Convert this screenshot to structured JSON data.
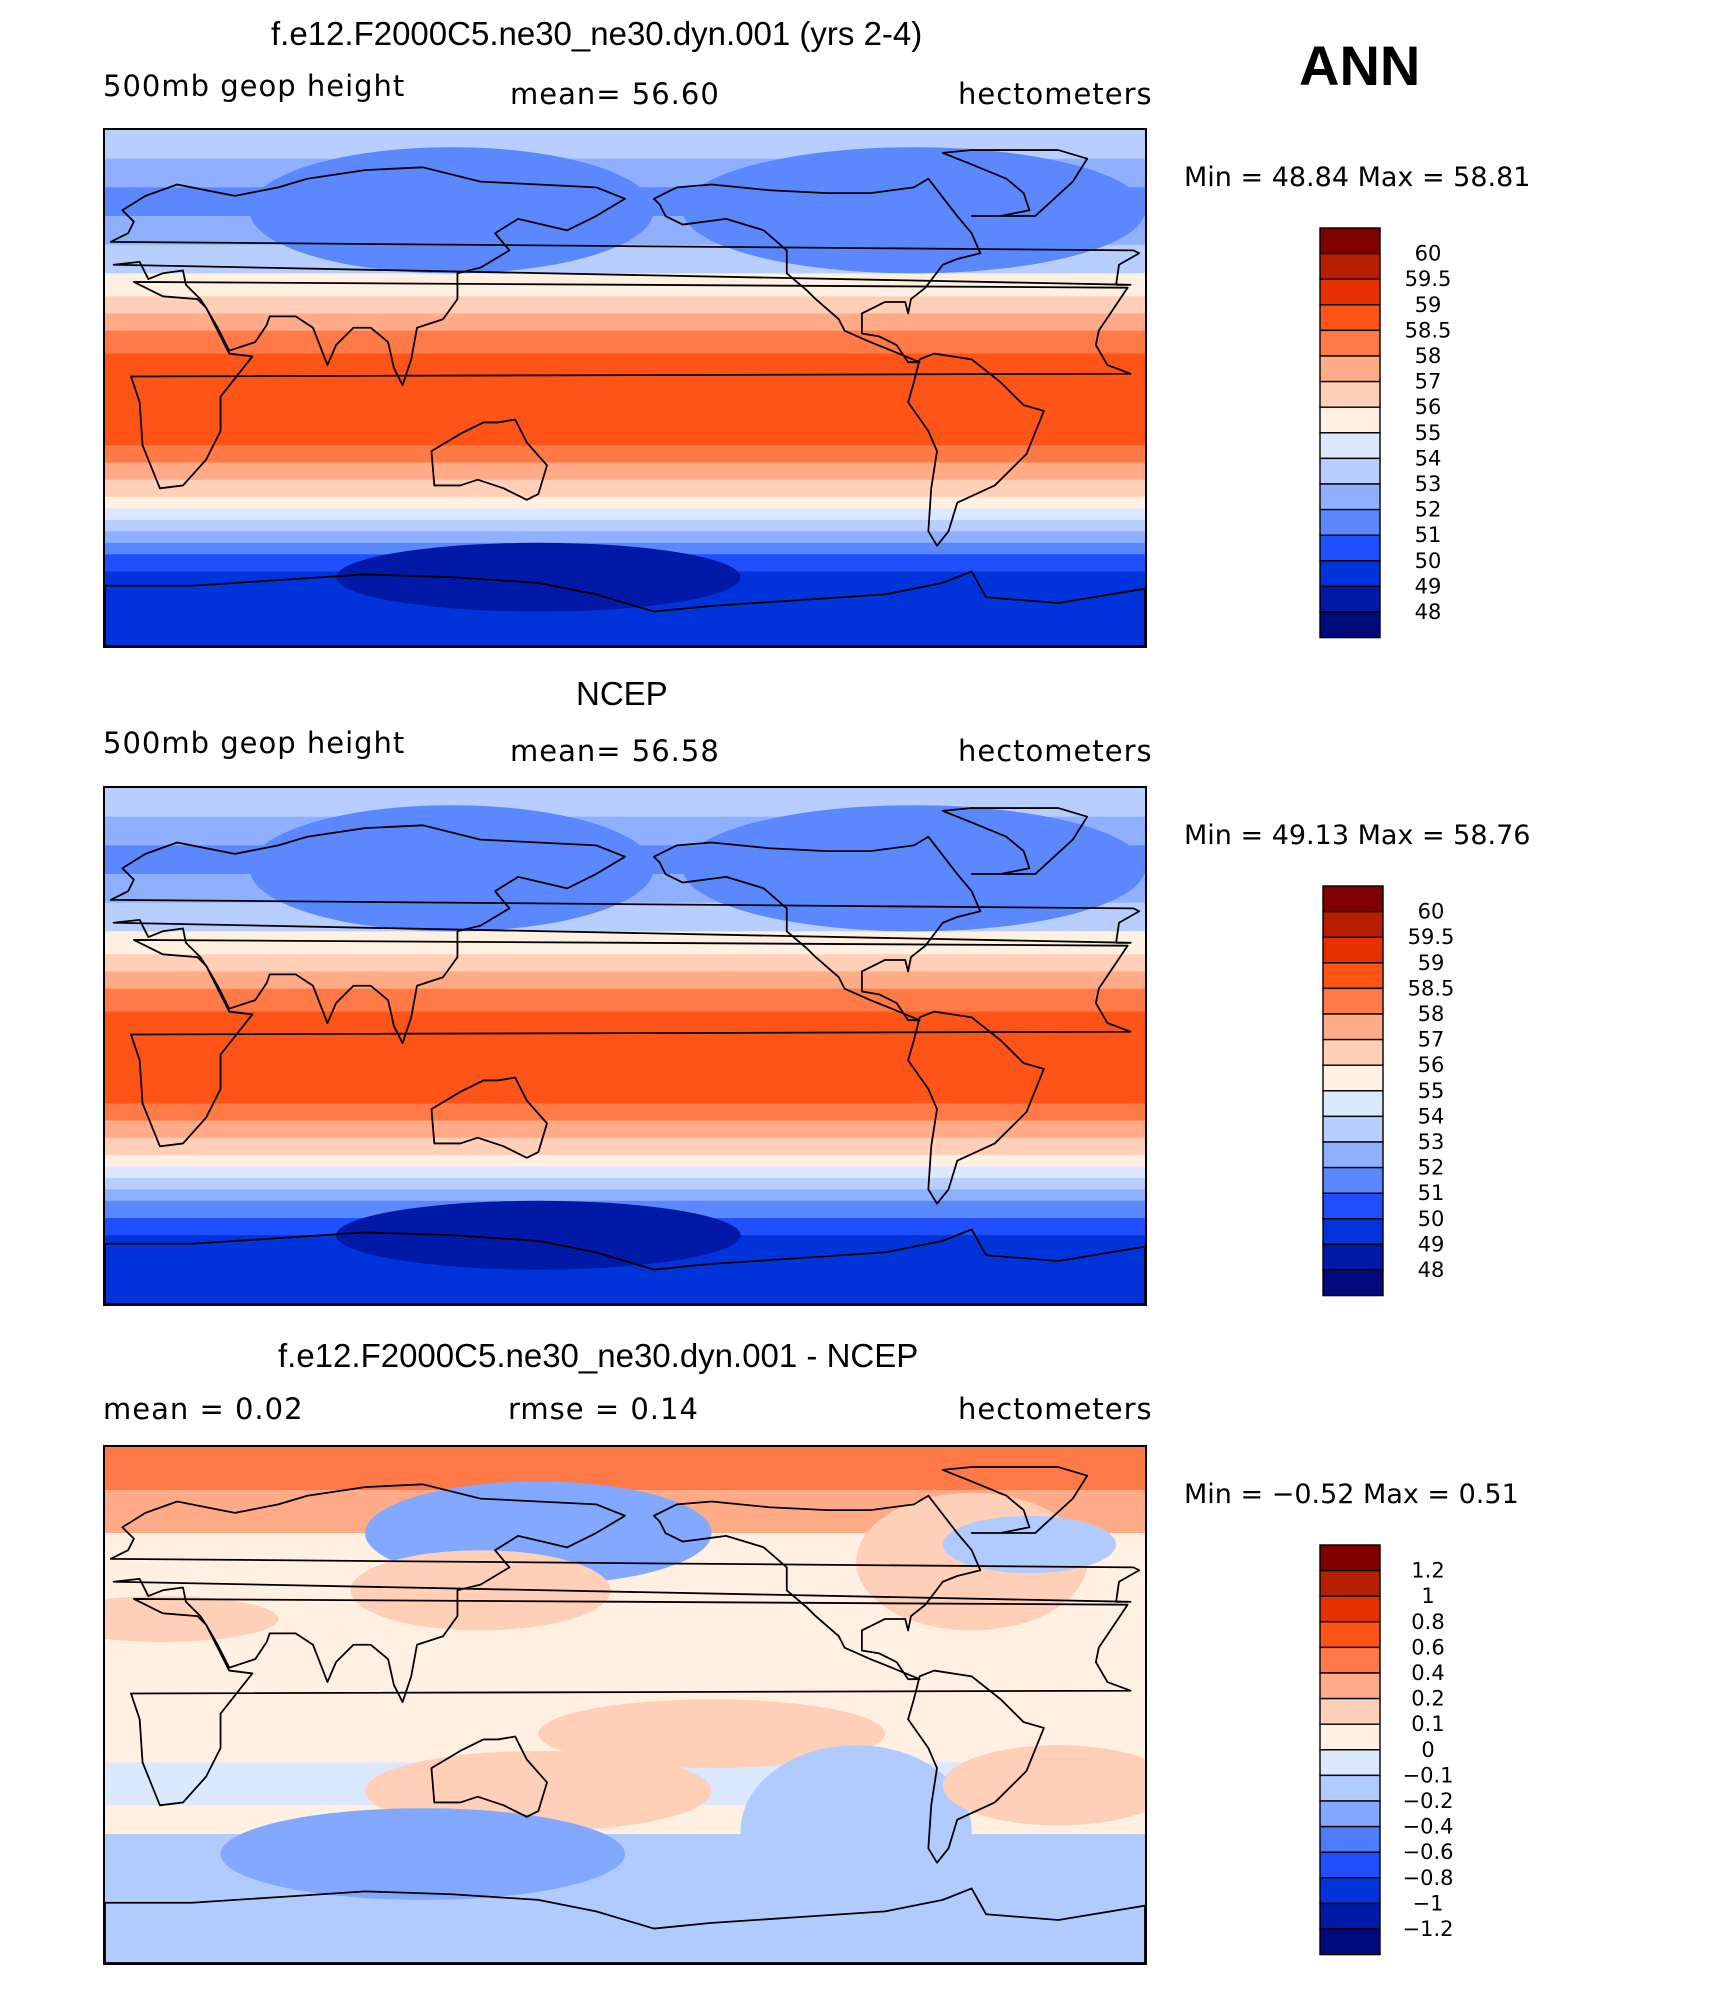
{
  "season": "ANN",
  "colors": {
    "abs": [
      "#000a7d",
      "#0019a6",
      "#0033d9",
      "#1f4fff",
      "#5b87ff",
      "#8fb0ff",
      "#b8ceff",
      "#dce8ff",
      "#fff0e2",
      "#ffd0b7",
      "#ffab88",
      "#ff7a46",
      "#ff5418",
      "#e63000",
      "#b81f00",
      "#800000"
    ],
    "diff": [
      "#000a7d",
      "#0019a6",
      "#0033d9",
      "#1f4fff",
      "#4d7cff",
      "#82a8ff",
      "#b2cbff",
      "#dce8ff",
      "#fff0e2",
      "#ffd0b7",
      "#ffab88",
      "#ff7a46",
      "#ff5418",
      "#e63000",
      "#b81f00",
      "#800000"
    ]
  },
  "chart_data": [
    {
      "type": "heatmap",
      "title": "f.e12.F2000C5.ne30_ne30.dyn.001 (yrs 2-4)",
      "left_label": "500mb geop height",
      "mean_text": "mean=   56.60",
      "units": "hectometers",
      "min_text": "Min  =    48.84  Max  =    58.81",
      "min": 48.84,
      "max": 58.81,
      "mean": 56.6,
      "levels": [
        "60",
        "59.5",
        "59",
        "58.5",
        "58",
        "57",
        "56",
        "55",
        "54",
        "53",
        "52",
        "51",
        "50",
        "49",
        "48"
      ],
      "palette": "abs",
      "zonal_profile": [
        {
          "lat": 90,
          "level": 6
        },
        {
          "lat": 80,
          "level": 5
        },
        {
          "lat": 70,
          "level": 4
        },
        {
          "lat": 60,
          "level": 5
        },
        {
          "lat": 50,
          "level": 6
        },
        {
          "lat": 40,
          "level": 8
        },
        {
          "lat": 32,
          "level": 9
        },
        {
          "lat": 26,
          "level": 10
        },
        {
          "lat": 20,
          "level": 11
        },
        {
          "lat": 12,
          "level": 12
        },
        {
          "lat": 0,
          "level": 12
        },
        {
          "lat": -12,
          "level": 12
        },
        {
          "lat": -20,
          "level": 11
        },
        {
          "lat": -26,
          "level": 10
        },
        {
          "lat": -32,
          "level": 9
        },
        {
          "lat": -38,
          "level": 8
        },
        {
          "lat": -42,
          "level": 7
        },
        {
          "lat": -46,
          "level": 6
        },
        {
          "lat": -50,
          "level": 5
        },
        {
          "lat": -54,
          "level": 4
        },
        {
          "lat": -58,
          "level": 3
        },
        {
          "lat": -64,
          "level": 2
        },
        {
          "lat": -90,
          "level": 1
        }
      ]
    },
    {
      "type": "heatmap",
      "title": "NCEP",
      "left_label": "500mb geop height",
      "mean_text": "mean=   56.58",
      "units": "hectometers",
      "min_text": "Min  =    49.13  Max  =    58.76",
      "min": 49.13,
      "max": 58.76,
      "mean": 56.58,
      "levels": [
        "60",
        "59.5",
        "59",
        "58.5",
        "58",
        "57",
        "56",
        "55",
        "54",
        "53",
        "52",
        "51",
        "50",
        "49",
        "48"
      ],
      "palette": "abs",
      "zonal_profile": [
        {
          "lat": 90,
          "level": 6
        },
        {
          "lat": 80,
          "level": 5
        },
        {
          "lat": 70,
          "level": 4
        },
        {
          "lat": 60,
          "level": 5
        },
        {
          "lat": 50,
          "level": 6
        },
        {
          "lat": 40,
          "level": 8
        },
        {
          "lat": 32,
          "level": 9
        },
        {
          "lat": 26,
          "level": 10
        },
        {
          "lat": 20,
          "level": 11
        },
        {
          "lat": 12,
          "level": 12
        },
        {
          "lat": 0,
          "level": 12
        },
        {
          "lat": -12,
          "level": 12
        },
        {
          "lat": -20,
          "level": 11
        },
        {
          "lat": -26,
          "level": 10
        },
        {
          "lat": -32,
          "level": 9
        },
        {
          "lat": -38,
          "level": 8
        },
        {
          "lat": -42,
          "level": 7
        },
        {
          "lat": -46,
          "level": 6
        },
        {
          "lat": -50,
          "level": 5
        },
        {
          "lat": -54,
          "level": 4
        },
        {
          "lat": -60,
          "level": 3
        },
        {
          "lat": -66,
          "level": 2
        },
        {
          "lat": -90,
          "level": 2
        }
      ]
    },
    {
      "type": "heatmap",
      "title": "f.e12.F2000C5.ne30_ne30.dyn.001 - NCEP",
      "left_label": "mean  =      0.02",
      "mean_text": "rmse  =     0.14",
      "units": "hectometers",
      "min_text": "Min  =    −0.52  Max  =      0.51",
      "min": -0.52,
      "max": 0.51,
      "mean": 0.02,
      "rmse": 0.14,
      "levels": [
        "1.2",
        "1",
        "0.8",
        "0.6",
        "0.4",
        "0.2",
        "0.1",
        "0",
        "−0.1",
        "−0.2",
        "−0.4",
        "−0.6",
        "−0.8",
        "−1",
        "−1.2"
      ],
      "palette": "diff",
      "zonal_profile": [
        {
          "lat": 90,
          "level": 11
        },
        {
          "lat": 75,
          "level": 10
        },
        {
          "lat": 60,
          "level": 8
        },
        {
          "lat": 40,
          "level": 8
        },
        {
          "lat": 20,
          "level": 8
        },
        {
          "lat": 0,
          "level": 8
        },
        {
          "lat": -20,
          "level": 7
        },
        {
          "lat": -35,
          "level": 8
        },
        {
          "lat": -45,
          "level": 6
        },
        {
          "lat": -60,
          "level": 6
        },
        {
          "lat": -90,
          "level": 7
        }
      ]
    }
  ]
}
